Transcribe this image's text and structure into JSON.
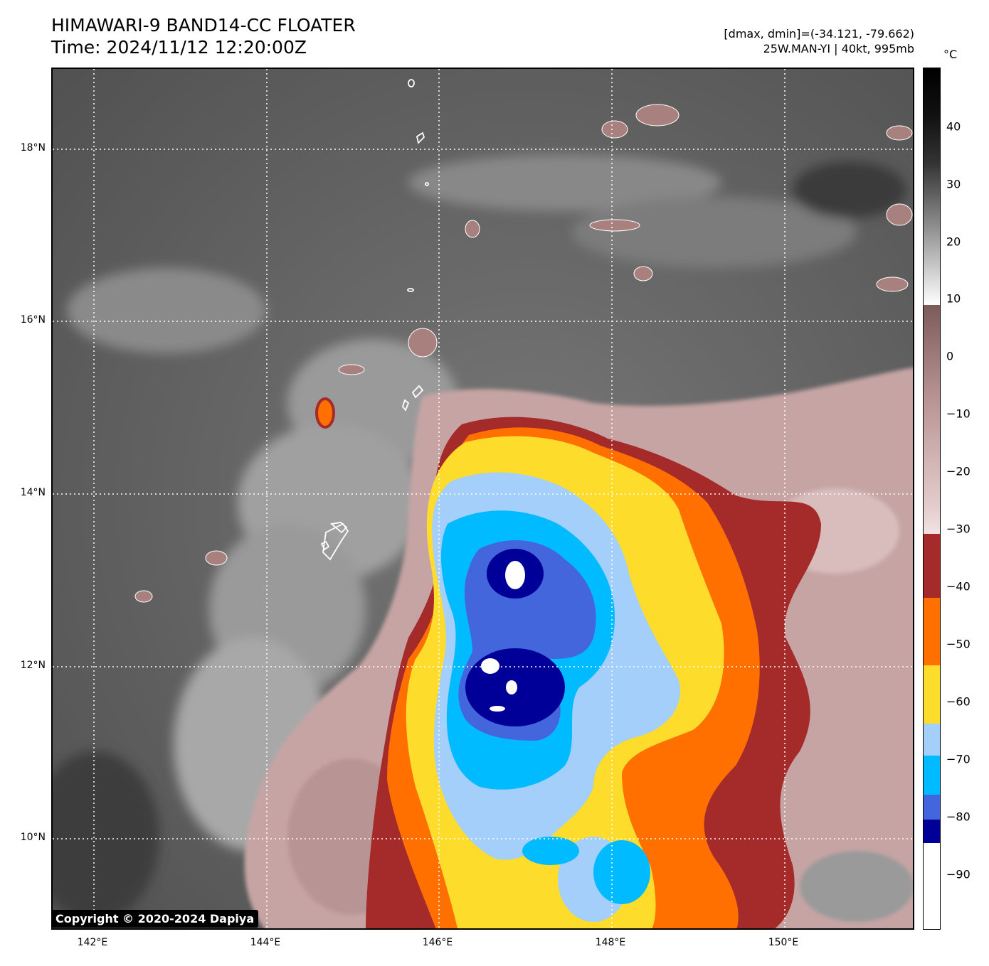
{
  "header": {
    "title_line1": "HIMAWARI-9 BAND14-CC FLOATER",
    "title_line2": "Time: 2024/11/12 12:20:00Z",
    "range_text": "[dmax, dmin]=(-34.121, -79.662)",
    "storm_text": "25W.MAN-YI | 40kt, 995mb"
  },
  "map": {
    "lat_labels": [
      "18°N",
      "16°N",
      "14°N",
      "12°N",
      "10°N"
    ],
    "lon_labels": [
      "142°E",
      "144°E",
      "146°E",
      "148°E",
      "150°E"
    ]
  },
  "colorbar": {
    "unit": "°C",
    "ticks": [
      "40",
      "30",
      "20",
      "10",
      "0",
      "−10",
      "−20",
      "−30",
      "−40",
      "−50",
      "−60",
      "−70",
      "−80",
      "−90"
    ]
  },
  "colors": {
    "cold_core": "#000099",
    "dark_blue": "#4466dd",
    "cyan": "#00bbff",
    "light_blue": "#a3cffa",
    "yellow": "#fddc2c",
    "orange": "#ff7000",
    "red": "#a52a2a",
    "warm_pink": "#c9a5a5",
    "background_gray": "#585858"
  },
  "footer": {
    "copyright": "Copyright © 2020-2024 Dapiya"
  }
}
